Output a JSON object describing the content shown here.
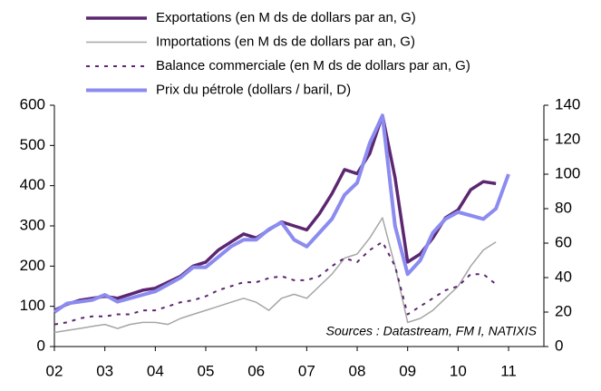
{
  "chart_data": {
    "type": "line",
    "x": [
      2002,
      2002.25,
      2002.5,
      2002.75,
      2003,
      2003.25,
      2003.5,
      2003.75,
      2004,
      2004.25,
      2004.5,
      2004.75,
      2005,
      2005.25,
      2005.5,
      2005.75,
      2006,
      2006.25,
      2006.5,
      2006.75,
      2007,
      2007.25,
      2007.5,
      2007.75,
      2008,
      2008.25,
      2008.5,
      2008.75,
      2009,
      2009.25,
      2009.5,
      2009.75,
      2010,
      2010.25,
      2010.5,
      2010.75,
      2011
    ],
    "series": [
      {
        "name": "Exportations (en M ds de dollars par an, G)",
        "color": "#5c2770",
        "line_width": 3.5,
        "dash": false,
        "values": [
          90,
          105,
          115,
          120,
          125,
          120,
          130,
          140,
          145,
          160,
          175,
          200,
          210,
          240,
          260,
          280,
          270,
          290,
          310,
          300,
          290,
          330,
          380,
          440,
          430,
          480,
          575,
          420,
          210,
          230,
          270,
          320,
          340,
          390,
          410,
          405,
          null
        ]
      },
      {
        "name": "Importations (en M ds de dollars par an, G)",
        "color": "#a6a6a6",
        "line_width": 1.5,
        "dash": false,
        "values": [
          35,
          40,
          45,
          50,
          55,
          45,
          55,
          60,
          60,
          55,
          70,
          80,
          90,
          100,
          110,
          120,
          110,
          90,
          120,
          130,
          120,
          150,
          180,
          220,
          230,
          270,
          320,
          200,
          60,
          70,
          90,
          120,
          150,
          200,
          240,
          260,
          null
        ]
      },
      {
        "name": "Balance commerciale (en M ds de dollars par an, G)",
        "color": "#5c2770",
        "line_width": 2,
        "dash": true,
        "values": [
          55,
          60,
          70,
          75,
          75,
          80,
          80,
          90,
          90,
          100,
          110,
          115,
          125,
          140,
          150,
          160,
          160,
          170,
          175,
          165,
          165,
          175,
          200,
          220,
          210,
          240,
          260,
          200,
          80,
          100,
          120,
          140,
          150,
          180,
          180,
          155,
          null
        ]
      },
      {
        "name": "Prix du pétrole (dollars / baril, D)",
        "color": "#8b8bf0",
        "line_width": 4,
        "dash": false,
        "axis": "y2",
        "values": [
          20,
          25,
          26,
          27,
          30,
          26,
          28,
          30,
          32,
          36,
          40,
          46,
          46,
          52,
          58,
          62,
          62,
          68,
          72,
          62,
          58,
          66,
          74,
          88,
          95,
          118,
          134,
          70,
          42,
          50,
          66,
          74,
          78,
          76,
          74,
          80,
          100
        ]
      }
    ],
    "xlim": [
      2002,
      2011.7
    ],
    "xticks": [
      {
        "value": 2002,
        "label": "02"
      },
      {
        "value": 2003,
        "label": "03"
      },
      {
        "value": 2004,
        "label": "04"
      },
      {
        "value": 2005,
        "label": "05"
      },
      {
        "value": 2006,
        "label": "06"
      },
      {
        "value": 2007,
        "label": "07"
      },
      {
        "value": 2008,
        "label": "08"
      },
      {
        "value": 2009,
        "label": "09"
      },
      {
        "value": 2010,
        "label": "10"
      },
      {
        "value": 2011,
        "label": "11"
      }
    ],
    "ylim": [
      0,
      600
    ],
    "yticks": [
      0,
      100,
      200,
      300,
      400,
      500,
      600
    ],
    "y2lim": [
      0,
      140
    ],
    "y2ticks": [
      0,
      20,
      40,
      60,
      80,
      100,
      120,
      140
    ],
    "annotation": "Sources : Datastream, FM I, NATIXIS",
    "legend": "top"
  }
}
